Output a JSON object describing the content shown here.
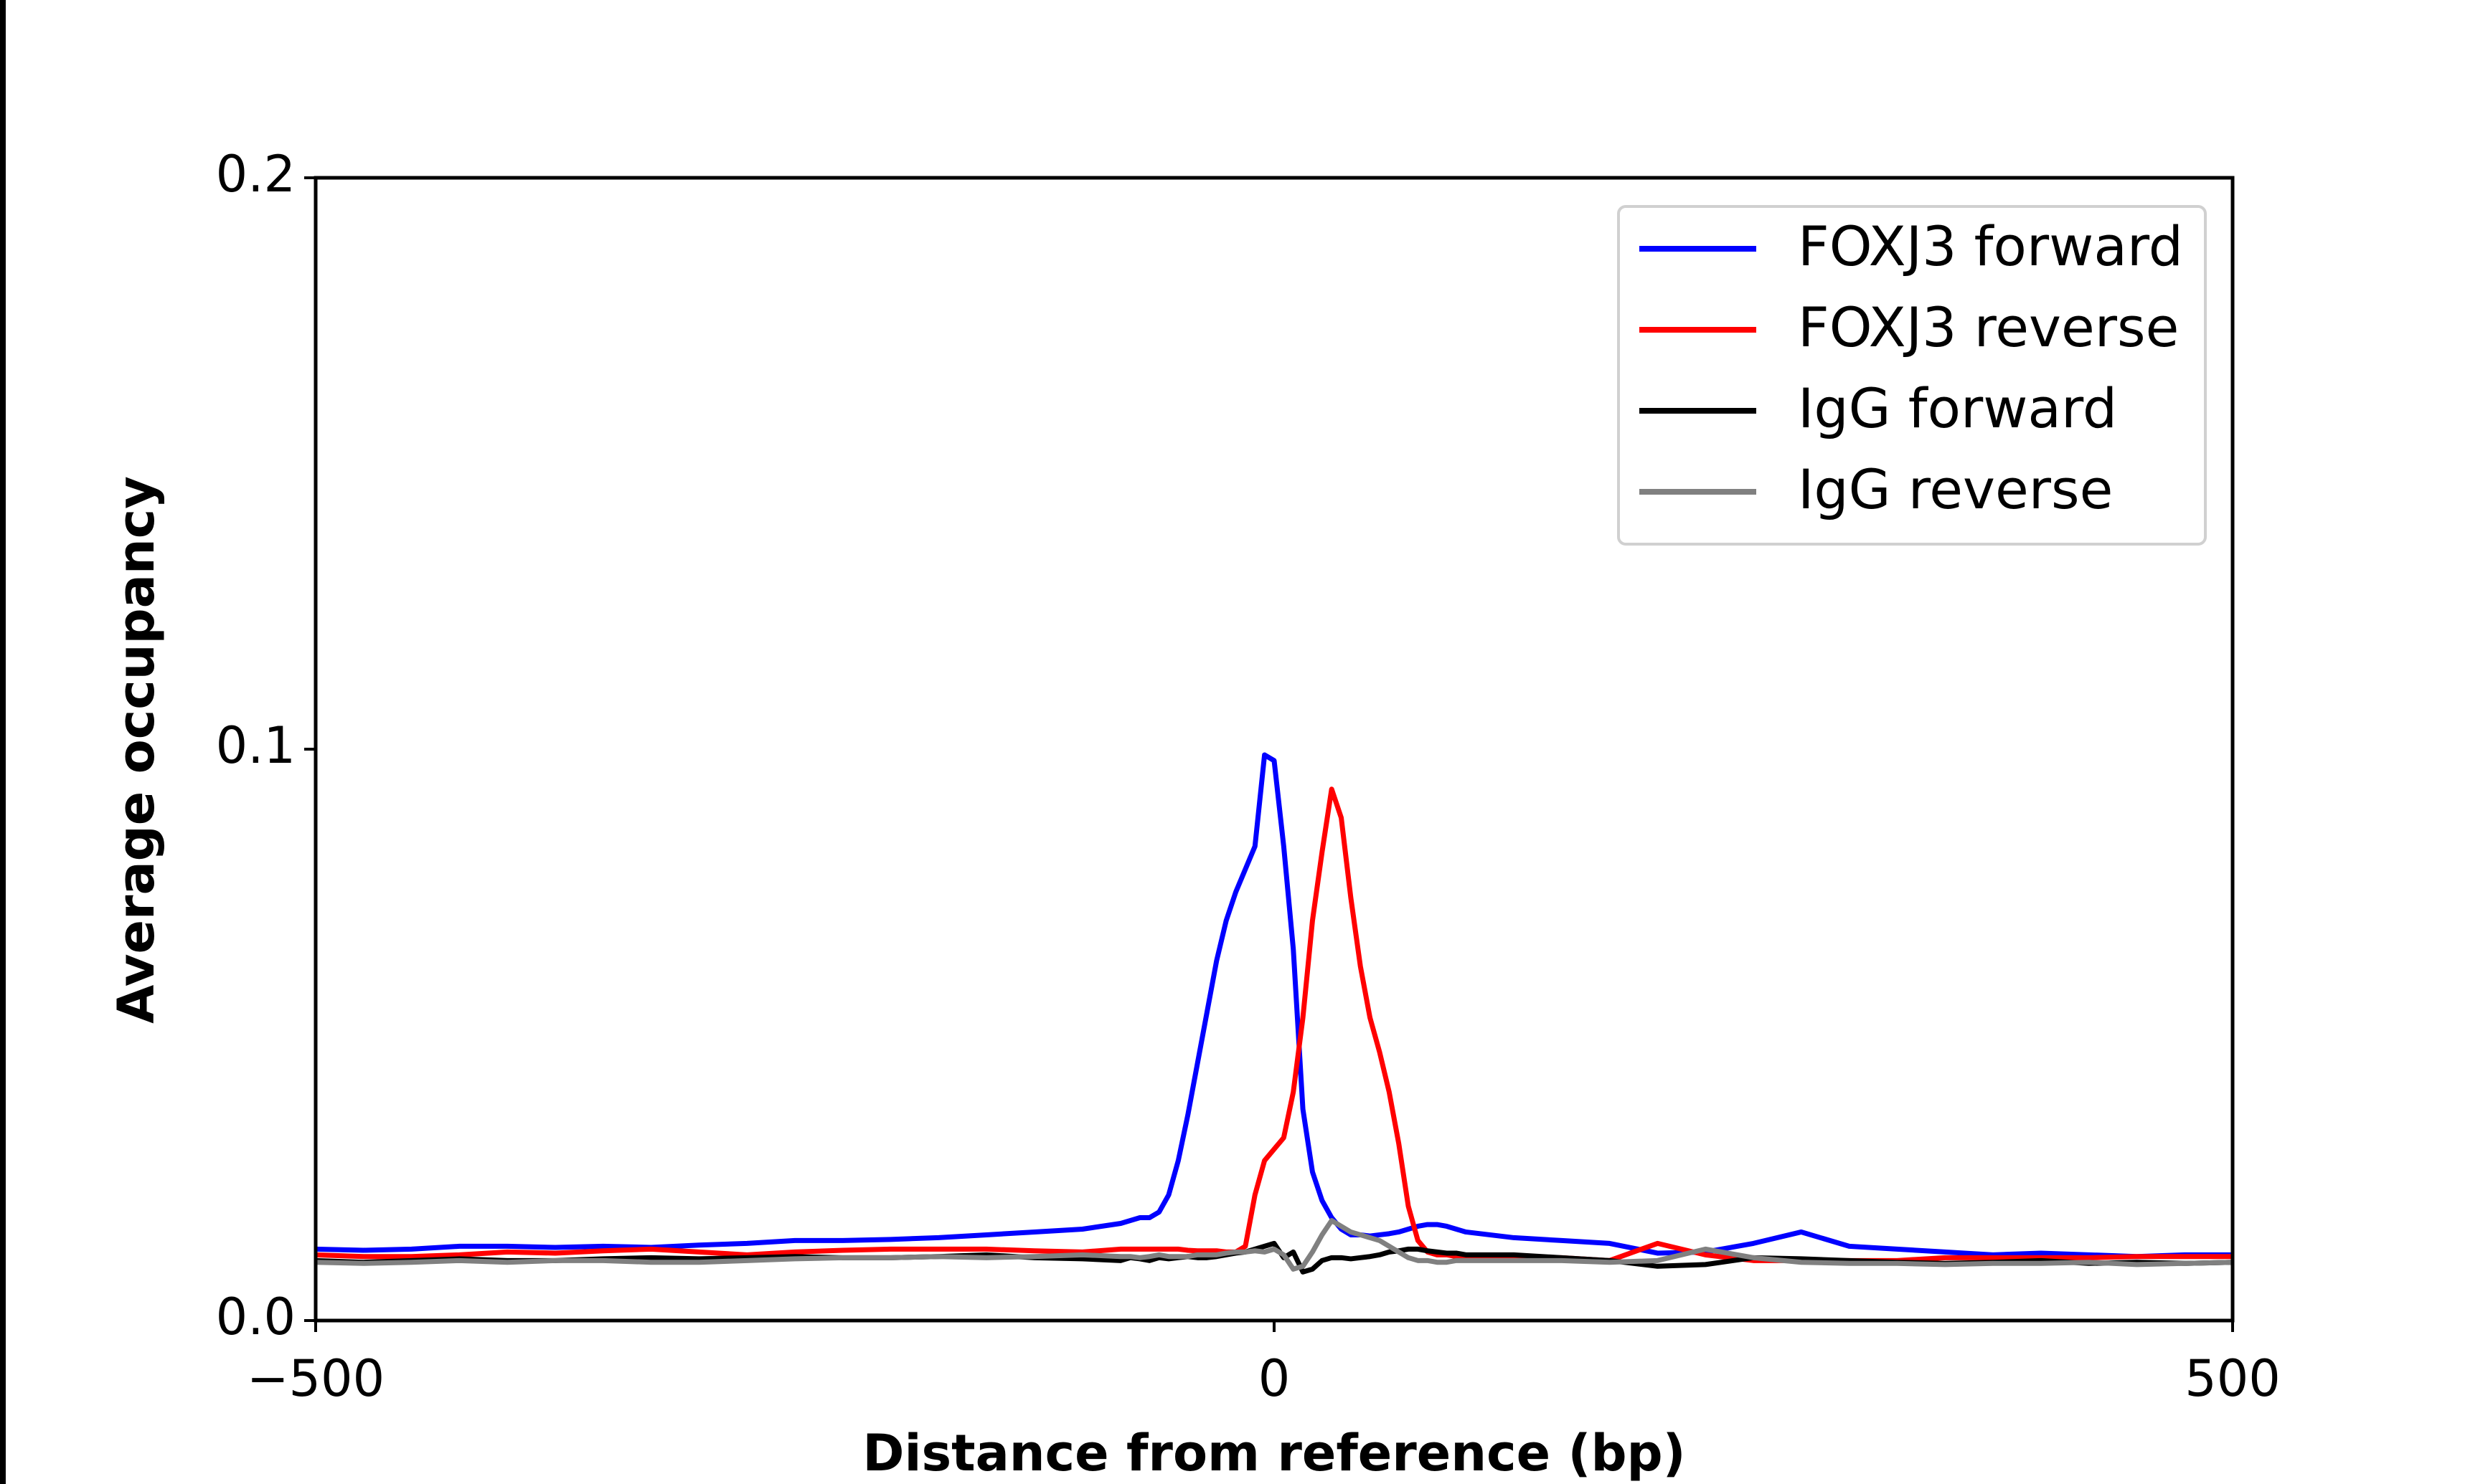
{
  "chart_data": {
    "type": "line",
    "xlabel": "Distance from reference (bp)",
    "ylabel": "Average occupancy",
    "xlim": [
      -500,
      500
    ],
    "xticks": [
      {
        "value": -500,
        "label": "−500"
      },
      0,
      500
    ],
    "ylim": [
      0,
      0.2
    ],
    "yticks": [
      {
        "value": 0,
        "label": "0.0"
      },
      0.1,
      0.2
    ],
    "legend": "upper right",
    "x": [
      -500,
      -475,
      -450,
      -425,
      -400,
      -375,
      -350,
      -325,
      -300,
      -275,
      -250,
      -225,
      -200,
      -175,
      -150,
      -125,
      -100,
      -80,
      -75,
      -70,
      -65,
      -60,
      -55,
      -50,
      -45,
      -40,
      -35,
      -30,
      -25,
      -20,
      -15,
      -10,
      -5,
      0,
      5,
      10,
      15,
      20,
      25,
      30,
      35,
      40,
      45,
      50,
      55,
      60,
      65,
      70,
      75,
      80,
      85,
      90,
      95,
      100,
      125,
      150,
      175,
      200,
      225,
      250,
      275,
      300,
      325,
      350,
      375,
      400,
      425,
      450,
      475,
      500
    ],
    "series": [
      {
        "name": "FOXJ3 forward",
        "color": "#0000ff",
        "values": [
          0.0125,
          0.0123,
          0.0125,
          0.013,
          0.013,
          0.0128,
          0.013,
          0.0128,
          0.0132,
          0.0135,
          0.014,
          0.014,
          0.0142,
          0.0145,
          0.015,
          0.0155,
          0.016,
          0.017,
          0.0175,
          0.018,
          0.018,
          0.019,
          0.022,
          0.028,
          0.036,
          0.045,
          0.054,
          0.063,
          0.07,
          0.075,
          0.079,
          0.083,
          0.099,
          0.098,
          0.083,
          0.065,
          0.037,
          0.026,
          0.021,
          0.018,
          0.016,
          0.015,
          0.015,
          0.0148,
          0.015,
          0.0152,
          0.0155,
          0.016,
          0.0165,
          0.0168,
          0.0168,
          0.0165,
          0.016,
          0.0155,
          0.0145,
          0.014,
          0.0135,
          0.0118,
          0.012,
          0.0135,
          0.0155,
          0.013,
          0.0125,
          0.012,
          0.0115,
          0.0118,
          0.0115,
          0.0112,
          0.0115,
          0.0115
        ]
      },
      {
        "name": "FOXJ3 reverse",
        "color": "#ff0000",
        "values": [
          0.0115,
          0.0112,
          0.0112,
          0.0115,
          0.012,
          0.0118,
          0.0122,
          0.0125,
          0.012,
          0.0115,
          0.012,
          0.0123,
          0.0125,
          0.0125,
          0.0125,
          0.0122,
          0.012,
          0.0125,
          0.0125,
          0.0125,
          0.0125,
          0.0125,
          0.0125,
          0.0125,
          0.0123,
          0.0122,
          0.0122,
          0.0122,
          0.012,
          0.012,
          0.013,
          0.022,
          0.028,
          0.03,
          0.032,
          0.04,
          0.053,
          0.07,
          0.082,
          0.093,
          0.088,
          0.074,
          0.062,
          0.053,
          0.047,
          0.04,
          0.031,
          0.02,
          0.014,
          0.012,
          0.0115,
          0.0115,
          0.0112,
          0.0112,
          0.011,
          0.011,
          0.0105,
          0.0135,
          0.0115,
          0.0105,
          0.0105,
          0.0105,
          0.0105,
          0.011,
          0.011,
          0.011,
          0.011,
          0.0112,
          0.0112,
          0.0112
        ]
      },
      {
        "name": "IgG forward",
        "color": "#000000",
        "values": [
          0.0105,
          0.0102,
          0.0105,
          0.0108,
          0.0105,
          0.0105,
          0.0108,
          0.011,
          0.0108,
          0.011,
          0.0112,
          0.011,
          0.011,
          0.0112,
          0.0115,
          0.011,
          0.0108,
          0.0105,
          0.011,
          0.0108,
          0.0105,
          0.011,
          0.0108,
          0.011,
          0.0112,
          0.011,
          0.011,
          0.0112,
          0.0115,
          0.0118,
          0.012,
          0.0125,
          0.013,
          0.0135,
          0.011,
          0.012,
          0.0085,
          0.009,
          0.0105,
          0.011,
          0.011,
          0.0108,
          0.011,
          0.0112,
          0.0115,
          0.012,
          0.0122,
          0.0125,
          0.0125,
          0.0122,
          0.012,
          0.0118,
          0.0118,
          0.0115,
          0.0115,
          0.011,
          0.0105,
          0.0095,
          0.0098,
          0.011,
          0.0108,
          0.0105,
          0.0102,
          0.01,
          0.0102,
          0.0105,
          0.01,
          0.0102,
          0.01,
          0.0102
        ]
      },
      {
        "name": "IgG reverse",
        "color": "#808080",
        "values": [
          0.0102,
          0.01,
          0.0102,
          0.0105,
          0.0102,
          0.0105,
          0.0105,
          0.0102,
          0.0102,
          0.0105,
          0.0108,
          0.011,
          0.011,
          0.0112,
          0.011,
          0.0112,
          0.0115,
          0.0112,
          0.0112,
          0.011,
          0.0112,
          0.0115,
          0.0112,
          0.0112,
          0.0112,
          0.0115,
          0.0115,
          0.0115,
          0.0118,
          0.012,
          0.012,
          0.0122,
          0.012,
          0.0125,
          0.0115,
          0.009,
          0.0095,
          0.012,
          0.015,
          0.0175,
          0.0165,
          0.0155,
          0.015,
          0.0145,
          0.014,
          0.013,
          0.012,
          0.011,
          0.0105,
          0.0105,
          0.0102,
          0.0102,
          0.0105,
          0.0105,
          0.0105,
          0.0105,
          0.0102,
          0.0105,
          0.0125,
          0.011,
          0.0102,
          0.01,
          0.01,
          0.0098,
          0.01,
          0.01,
          0.0102,
          0.0098,
          0.01,
          0.0102
        ]
      }
    ]
  }
}
